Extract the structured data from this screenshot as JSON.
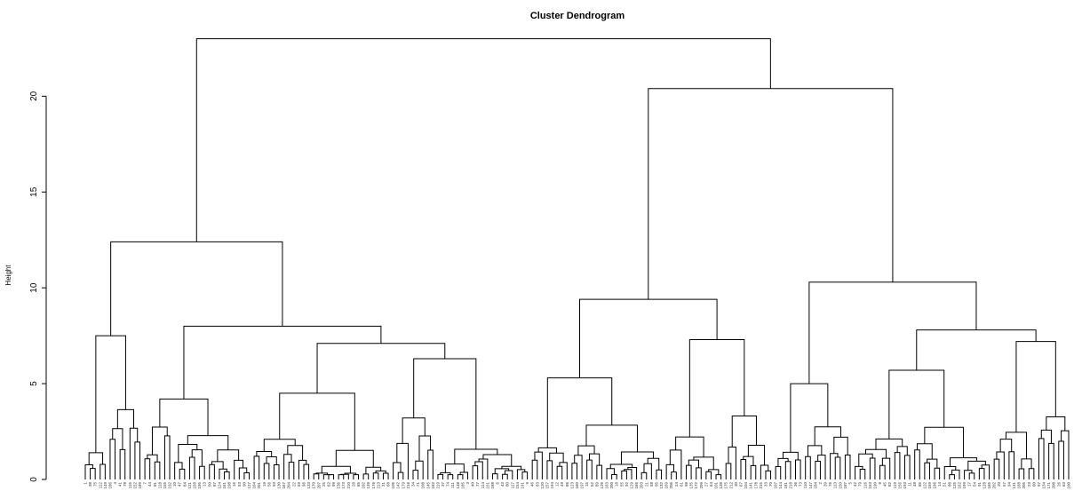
{
  "chart_data": {
    "type": "dendrogram",
    "title": "Cluster Dendrogram",
    "ylabel": "Height",
    "ylim": [
      0,
      24
    ],
    "yticks": [
      0,
      5,
      10,
      15,
      20
    ],
    "leaves": 219,
    "merges": [
      {
        "id": "root",
        "height": 23.0
      },
      {
        "id": "A",
        "height": 12.4
      },
      {
        "id": "B",
        "height": 20.4
      },
      {
        "id": "A1",
        "height": 7.5
      },
      {
        "id": "A2",
        "height": 8.0
      },
      {
        "id": "A2a",
        "height": 4.2
      },
      {
        "id": "A2b",
        "height": 7.1
      },
      {
        "id": "A2b1",
        "height": 4.5
      },
      {
        "id": "A2b2",
        "height": 6.3
      },
      {
        "id": "B1",
        "height": 9.4
      },
      {
        "id": "B1a",
        "height": 5.3
      },
      {
        "id": "B1b",
        "height": 7.3
      },
      {
        "id": "B2",
        "height": 10.3
      },
      {
        "id": "B2a",
        "height": 5.0
      },
      {
        "id": "B2b",
        "height": 7.8
      },
      {
        "id": "B2b1",
        "height": 5.7
      },
      {
        "id": "B2b2",
        "height": 7.2
      }
    ]
  }
}
